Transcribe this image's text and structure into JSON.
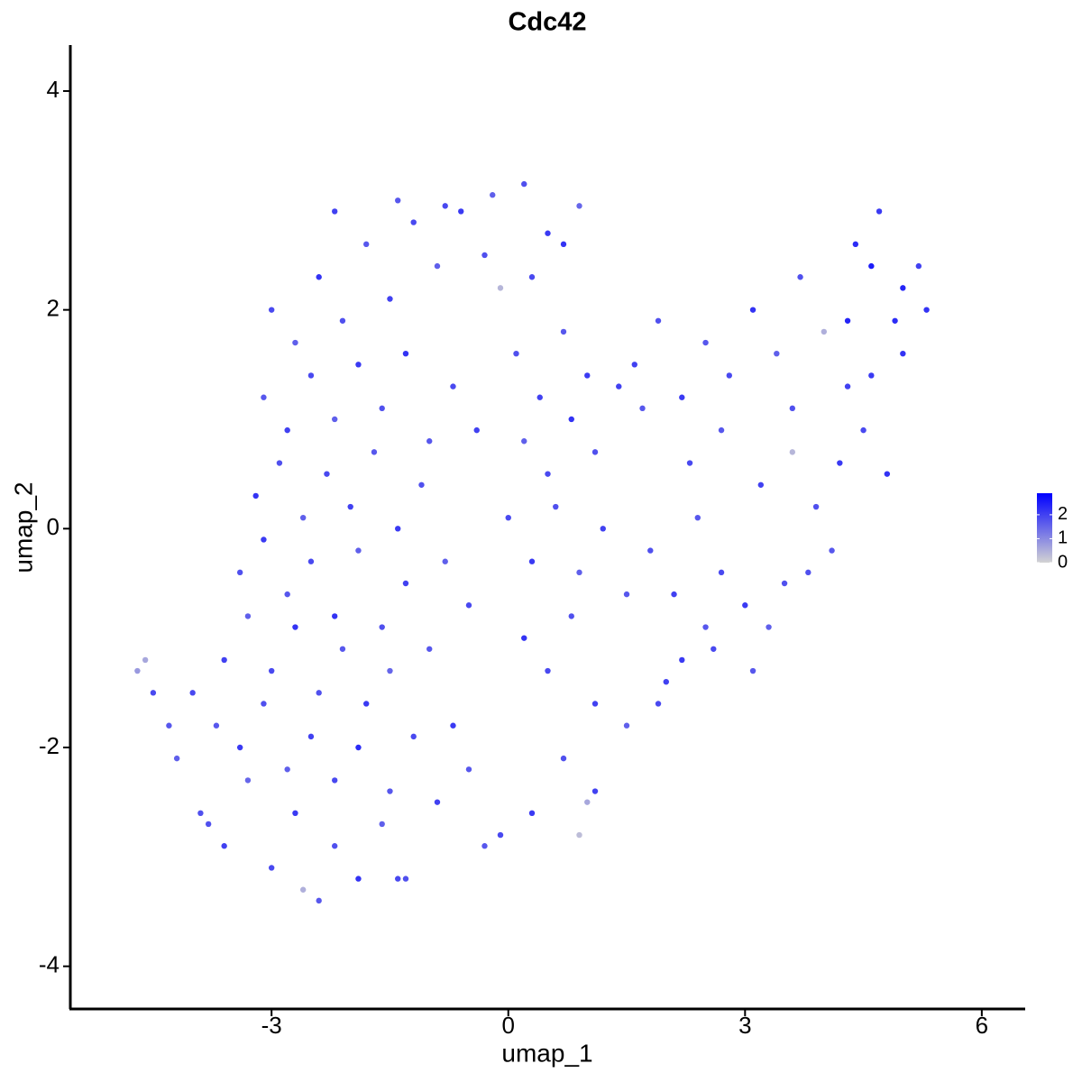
{
  "chart_data": {
    "type": "scatter",
    "title": "Cdc42",
    "xlabel": "umap_1",
    "ylabel": "umap_2",
    "xlim": [
      -5.55,
      6.55
    ],
    "ylim": [
      -4.39,
      4.42
    ],
    "xticks": [
      -3,
      0,
      3,
      6
    ],
    "yticks": [
      -4,
      -2,
      0,
      2,
      4
    ],
    "point_color_low": "#d3d3d3",
    "point_color_high": "#0000ff",
    "colorbar": {
      "lim": [
        0,
        2.9
      ],
      "ticks": [
        0,
        1,
        2
      ]
    },
    "x": [
      -4.2,
      -3.9,
      -3.6,
      -3.3,
      -3.0,
      -2.7,
      -2.4,
      -2.2,
      -1.9,
      -1.6,
      -4.0,
      -3.7,
      -3.4,
      -3.1,
      -2.8,
      -2.5,
      -2.2,
      -1.9,
      -1.5,
      -1.3,
      -3.6,
      -3.3,
      -3.0,
      -2.7,
      -2.4,
      -2.1,
      -1.8,
      -1.5,
      -1.2,
      -0.9,
      -3.4,
      -3.1,
      -2.8,
      -2.5,
      -2.2,
      -1.9,
      -1.6,
      -1.3,
      -1.0,
      -0.7,
      -3.2,
      -2.9,
      -2.6,
      -2.3,
      -2.0,
      -1.7,
      -1.4,
      -1.1,
      -0.8,
      -0.5,
      -3.1,
      -2.8,
      -2.5,
      -2.2,
      -1.9,
      -1.6,
      -1.3,
      -1.0,
      -0.7,
      -0.4,
      -3.0,
      -2.7,
      -2.4,
      -2.1,
      -1.8,
      -1.5,
      -1.2,
      -0.9,
      -0.6,
      -0.3,
      -2.2,
      -1.4,
      -0.8,
      -0.2,
      0.2,
      0.5,
      0.9,
      -0.1,
      0.3,
      0.7,
      0.1,
      0.4,
      0.7,
      1.0,
      0.2,
      0.5,
      0.8,
      1.1,
      1.4,
      1.7,
      0.0,
      0.3,
      0.6,
      0.9,
      1.2,
      1.5,
      0.2,
      0.5,
      0.8,
      1.1,
      -0.5,
      -0.1,
      0.3,
      0.7,
      1.1,
      1.5,
      1.9,
      2.2,
      2.5,
      0.9,
      1.8,
      2.1,
      2.4,
      2.7,
      3.0,
      3.3,
      3.5,
      2.0,
      2.6,
      3.1,
      1.6,
      1.9,
      2.2,
      2.5,
      2.8,
      3.1,
      3.4,
      3.7,
      4.0,
      4.3,
      2.3,
      2.7,
      3.2,
      3.6,
      3.9,
      4.2,
      4.5,
      4.8,
      4.1,
      3.8,
      4.4,
      4.7,
      5.0,
      5.3,
      4.6,
      4.9,
      5.2,
      4.3,
      4.6,
      5.0,
      -4.7,
      -4.6,
      -4.5,
      -4.3,
      -3.8,
      -2.6,
      -1.4,
      -0.3,
      1.0,
      3.6
    ],
    "y": [
      -2.1,
      -2.6,
      -2.9,
      -2.3,
      -3.1,
      -2.6,
      -3.4,
      -2.9,
      -3.2,
      -2.7,
      -1.5,
      -1.8,
      -2.0,
      -1.6,
      -2.2,
      -1.9,
      -2.3,
      -2.0,
      -2.4,
      -3.2,
      -1.2,
      -0.8,
      -1.3,
      -0.9,
      -1.5,
      -1.1,
      -1.6,
      -1.3,
      -1.9,
      -2.5,
      -0.4,
      -0.1,
      -0.6,
      -0.3,
      -0.8,
      -0.2,
      -0.9,
      -0.5,
      -1.1,
      -1.8,
      0.3,
      0.6,
      0.1,
      0.5,
      0.2,
      0.7,
      0.0,
      0.4,
      -0.3,
      -0.7,
      1.2,
      0.9,
      1.4,
      1.0,
      1.5,
      1.1,
      1.6,
      0.8,
      1.3,
      0.9,
      2.0,
      1.7,
      2.3,
      1.9,
      2.6,
      2.1,
      2.8,
      2.4,
      2.9,
      2.5,
      2.9,
      3.0,
      2.95,
      3.05,
      3.15,
      2.7,
      2.95,
      2.2,
      2.3,
      2.6,
      1.6,
      1.2,
      1.8,
      1.4,
      0.8,
      0.5,
      1.0,
      0.7,
      1.3,
      1.1,
      0.1,
      -0.3,
      0.2,
      -0.4,
      0.0,
      -0.6,
      -1.0,
      -1.3,
      -0.8,
      -1.6,
      -2.2,
      -2.8,
      -2.6,
      -2.1,
      -2.4,
      -1.8,
      -1.6,
      -1.2,
      -0.9,
      -2.8,
      -0.2,
      -0.6,
      0.1,
      -0.4,
      -0.7,
      -0.9,
      -0.5,
      -1.4,
      -1.1,
      -1.3,
      1.5,
      1.9,
      1.2,
      1.7,
      1.4,
      2.0,
      1.6,
      2.3,
      1.8,
      1.3,
      0.6,
      0.9,
      0.4,
      0.7,
      0.2,
      0.6,
      0.9,
      0.5,
      -0.2,
      -0.4,
      2.6,
      2.9,
      2.2,
      2.0,
      2.4,
      1.9,
      2.4,
      1.9,
      1.4,
      1.6,
      -1.3,
      -1.2,
      -1.5,
      -1.8,
      -2.7,
      -3.3,
      -3.2,
      -2.9,
      -2.5,
      1.1
    ],
    "expression": [
      1.6,
      1.8,
      2.0,
      1.5,
      1.9,
      2.1,
      1.7,
      1.8,
      2.2,
      1.6,
      1.9,
      1.7,
      2.1,
      1.8,
      1.6,
      2.0,
      1.9,
      2.3,
      1.7,
      1.8,
      2.0,
      1.6,
      1.9,
      2.2,
      1.8,
      1.7,
      2.1,
      1.5,
      1.9,
      2.0,
      1.8,
      2.1,
      1.7,
      1.9,
      2.2,
      1.6,
      1.8,
      2.0,
      1.7,
      2.1,
      2.2,
      1.8,
      1.6,
      1.9,
      2.0,
      1.7,
      2.1,
      1.8,
      1.6,
      1.9,
      1.7,
      2.0,
      1.9,
      1.6,
      2.1,
      1.8,
      2.2,
      1.7,
      1.9,
      2.0,
      1.9,
      1.6,
      2.2,
      1.8,
      1.7,
      2.0,
      1.9,
      1.6,
      2.1,
      1.8,
      2.0,
      1.7,
      1.9,
      1.6,
      1.8,
      2.1,
      1.5,
      0.4,
      1.9,
      2.2,
      1.8,
      2.0,
      1.7,
      2.1,
      1.6,
      1.9,
      2.2,
      1.8,
      2.0,
      1.7,
      1.9,
      2.1,
      1.8,
      1.6,
      2.0,
      1.7,
      2.2,
      1.9,
      1.8,
      2.0,
      1.7,
      1.9,
      2.1,
      1.8,
      2.0,
      1.6,
      1.9,
      2.1,
      1.7,
      0.3,
      1.8,
      2.0,
      1.7,
      1.9,
      2.1,
      1.6,
      1.8,
      2.0,
      1.9,
      1.7,
      2.0,
      1.8,
      2.1,
      1.7,
      1.9,
      2.2,
      1.6,
      1.8,
      0.5,
      2.0,
      1.9,
      1.7,
      2.0,
      0.4,
      1.8,
      2.1,
      1.9,
      2.2,
      1.7,
      1.8,
      2.3,
      2.1,
      2.4,
      2.2,
      2.5,
      2.3,
      2.0,
      2.4,
      2.1,
      2.2,
      0.8,
      0.6,
      1.9,
      1.7,
      1.8,
      0.5,
      1.9,
      1.7,
      0.6,
      1.8
    ]
  }
}
